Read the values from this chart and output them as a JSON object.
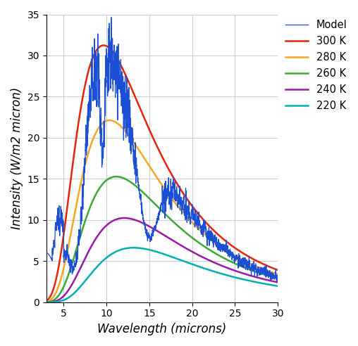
{
  "title": "",
  "xlabel": "Wavelength (microns)",
  "ylabel": "Intensity (W/m2 micron)",
  "xlim": [
    3,
    30
  ],
  "ylim": [
    0,
    35
  ],
  "xticks": [
    5,
    10,
    15,
    20,
    25,
    30
  ],
  "yticks": [
    0,
    5,
    10,
    15,
    20,
    25,
    30,
    35
  ],
  "planck_temps": [
    300,
    280,
    260,
    240,
    220
  ],
  "planck_colors": [
    "#e8230a",
    "#f5a623",
    "#3aaa35",
    "#9b1aaa",
    "#00b0b0"
  ],
  "planck_labels": [
    "300 K",
    "280 K",
    "260 K",
    "240 K",
    "220 K"
  ],
  "model_color": "#1a4fd6",
  "model_label": "Model",
  "legend_fontsize": 10.5,
  "axis_label_fontsize": 12,
  "background_color": "#ffffff",
  "grid_color": "#cccccc"
}
